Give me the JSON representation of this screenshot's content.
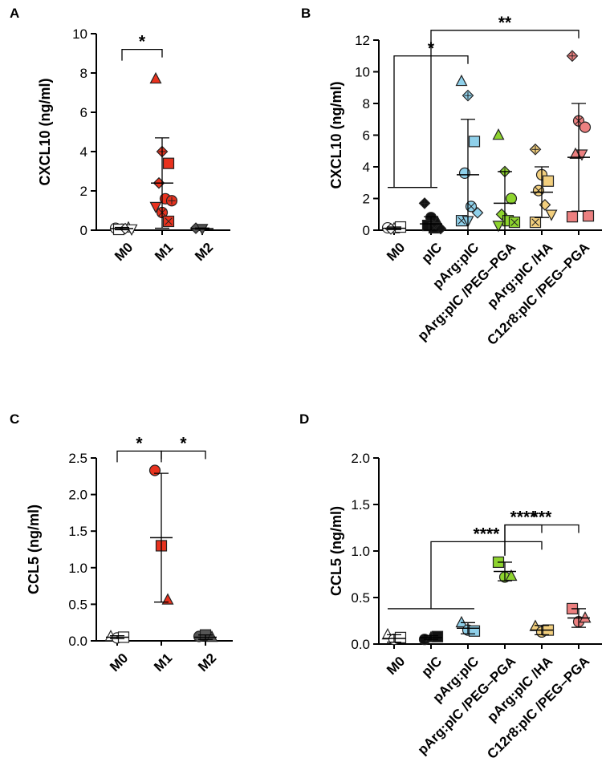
{
  "chart_data": [
    {
      "panel": "A",
      "type": "scatter",
      "ylabel": "CXCL10 (ng/ml)",
      "ylim": [
        0,
        10
      ],
      "yticks": [
        "0",
        "2",
        "4",
        "6",
        "8",
        "10"
      ],
      "categories": [
        "M0",
        "M1",
        "M2"
      ],
      "groups": [
        {
          "name": "M0",
          "color": "#ffffff",
          "mean": 0.08,
          "sd": 0.06,
          "points": [
            {
              "y": 0.1,
              "m": "circle"
            },
            {
              "y": 0.05,
              "m": "circle"
            },
            {
              "y": 0.12,
              "m": "tri"
            },
            {
              "y": 0.04,
              "m": "square"
            },
            {
              "y": 0.08,
              "m": "diamond"
            },
            {
              "y": 0.06,
              "m": "tridown"
            }
          ]
        },
        {
          "name": "M1",
          "color": "#e8321e",
          "mean": 2.4,
          "sd": 2.3,
          "points": [
            {
              "y": 7.7,
              "m": "tri"
            },
            {
              "y": 4.0,
              "m": "diamondplus"
            },
            {
              "y": 3.4,
              "m": "square"
            },
            {
              "y": 2.4,
              "m": "diamond"
            },
            {
              "y": 1.6,
              "m": "circle"
            },
            {
              "y": 1.5,
              "m": "circleplus"
            },
            {
              "y": 1.2,
              "m": "tridown"
            },
            {
              "y": 0.9,
              "m": "circlex"
            },
            {
              "y": 0.45,
              "m": "squarex"
            }
          ]
        },
        {
          "name": "M2",
          "color": "#555555",
          "mean": 0.08,
          "sd": 0.03,
          "points": [
            {
              "y": 0.1,
              "m": "diamond"
            },
            {
              "y": 0.08,
              "m": "tridown"
            }
          ]
        }
      ],
      "significance": [
        {
          "from": 0,
          "to": 1,
          "label": "*",
          "y": 9.2
        }
      ]
    },
    {
      "panel": "B",
      "type": "scatter",
      "ylabel": "CXCL10 (ng/ml)",
      "ylim": [
        0,
        12
      ],
      "yticks": [
        "0",
        "2",
        "4",
        "6",
        "8",
        "10",
        "12"
      ],
      "categories": [
        "M0",
        "pIC",
        "pArg:pIC",
        "pArg:pIC /PEG–PGA",
        "pArg:pIC /HA",
        "C12r8:pIC /PEG–PGA"
      ],
      "groups": [
        {
          "name": "M0",
          "color": "#ffffff",
          "mean": 0.12,
          "sd": 0.08,
          "points": [
            {
              "y": 0.15,
              "m": "circle"
            },
            {
              "y": 0.1,
              "m": "tri"
            },
            {
              "y": 0.2,
              "m": "square"
            },
            {
              "y": 0.08,
              "m": "diamond"
            }
          ]
        },
        {
          "name": "pIC",
          "color": "#111111",
          "mean": 0.4,
          "sd": 0.45,
          "points": [
            {
              "y": 1.7,
              "m": "diamondplus"
            },
            {
              "y": 0.8,
              "m": "circle"
            },
            {
              "y": 0.5,
              "m": "tri"
            },
            {
              "y": 0.3,
              "m": "square"
            },
            {
              "y": 0.15,
              "m": "squarex"
            },
            {
              "y": 0.1,
              "m": "diamond"
            }
          ]
        },
        {
          "name": "pArg:pIC",
          "color": "#8fd0ea",
          "mean": 3.5,
          "sd": 3.5,
          "points": [
            {
              "y": 9.4,
              "m": "tri"
            },
            {
              "y": 8.5,
              "m": "diamondplus"
            },
            {
              "y": 5.6,
              "m": "square"
            },
            {
              "y": 3.6,
              "m": "circle"
            },
            {
              "y": 1.5,
              "m": "circlex"
            },
            {
              "y": 1.1,
              "m": "diamond"
            },
            {
              "y": 0.6,
              "m": "squarex"
            },
            {
              "y": 0.6,
              "m": "tridown"
            }
          ]
        },
        {
          "name": "pArg:pIC /PEG–PGA",
          "color": "#8ed42e",
          "mean": 1.7,
          "sd": 2.0,
          "points": [
            {
              "y": 6.0,
              "m": "tri"
            },
            {
              "y": 3.7,
              "m": "diamondplus"
            },
            {
              "y": 2.0,
              "m": "circle"
            },
            {
              "y": 1.0,
              "m": "diamond"
            },
            {
              "y": 0.6,
              "m": "square"
            },
            {
              "y": 0.5,
              "m": "squarex"
            },
            {
              "y": 0.3,
              "m": "tridown"
            }
          ]
        },
        {
          "name": "pArg:pIC /HA",
          "color": "#f2cf7e",
          "mean": 2.4,
          "sd": 1.6,
          "points": [
            {
              "y": 5.1,
              "m": "diamondplus"
            },
            {
              "y": 3.5,
              "m": "circle"
            },
            {
              "y": 3.1,
              "m": "square"
            },
            {
              "y": 2.5,
              "m": "circlex"
            },
            {
              "y": 1.6,
              "m": "diamond"
            },
            {
              "y": 1.0,
              "m": "tridown"
            },
            {
              "y": 0.5,
              "m": "squarex"
            }
          ]
        },
        {
          "name": "C12r8:pIC /PEG–PGA",
          "color": "#ec8080",
          "mean": 4.6,
          "sd": 3.4,
          "points": [
            {
              "y": 11.0,
              "m": "diamondplus"
            },
            {
              "y": 6.9,
              "m": "circlex"
            },
            {
              "y": 6.5,
              "m": "circle"
            },
            {
              "y": 4.8,
              "m": "tri"
            },
            {
              "y": 4.8,
              "m": "tridown"
            },
            {
              "y": 0.9,
              "m": "square"
            },
            {
              "y": 0.85,
              "m": "square"
            }
          ]
        }
      ],
      "significance": [
        {
          "from": 0,
          "to": 2,
          "label": "*",
          "y": 11.0,
          "drop_to": 2.7
        },
        {
          "from": 1,
          "to": 5,
          "label": "**",
          "y": 12.7,
          "drop_to": 2.7
        }
      ],
      "reference_line": {
        "from": 0,
        "to": 1,
        "y": 2.7
      }
    },
    {
      "panel": "C",
      "type": "scatter",
      "ylabel": "CCL5 (ng/ml)",
      "ylim": [
        0,
        2.5
      ],
      "yticks": [
        "0.0",
        "0.5",
        "1.0",
        "1.5",
        "2.0",
        "2.5"
      ],
      "categories": [
        "M0",
        "M1",
        "M2"
      ],
      "groups": [
        {
          "name": "M0",
          "color": "#ffffff",
          "mean": 0.05,
          "sd": 0.02,
          "points": [
            {
              "y": 0.06,
              "m": "tri"
            },
            {
              "y": 0.04,
              "m": "circle"
            },
            {
              "y": 0.05,
              "m": "square"
            }
          ]
        },
        {
          "name": "M1",
          "color": "#e8321e",
          "mean": 1.41,
          "sd": 0.88,
          "points": [
            {
              "y": 2.33,
              "m": "circle"
            },
            {
              "y": 1.3,
              "m": "square"
            },
            {
              "y": 0.56,
              "m": "tri"
            }
          ]
        },
        {
          "name": "M2",
          "color": "#555555",
          "mean": 0.05,
          "sd": 0.03,
          "points": [
            {
              "y": 0.06,
              "m": "circle"
            },
            {
              "y": 0.08,
              "m": "square"
            },
            {
              "y": 0.05,
              "m": "tri"
            }
          ]
        }
      ],
      "significance": [
        {
          "from": 0,
          "to": 1,
          "label": "*",
          "y": 2.6
        },
        {
          "from": 1,
          "to": 2,
          "label": "*",
          "y": 2.6
        }
      ]
    },
    {
      "panel": "D",
      "type": "scatter",
      "ylabel": "CCL5 (ng/ml)",
      "ylim": [
        0,
        2.0
      ],
      "yticks": [
        "0.0",
        "0.5",
        "1.0",
        "1.5",
        "2.0"
      ],
      "categories": [
        "M0",
        "pIC",
        "pArg:pIC",
        "pArg:pIC /PEG–PGA",
        "pArg:pIC /HA",
        "C12r8:pIC /PEG–PGA"
      ],
      "groups": [
        {
          "name": "M0",
          "color": "#ffffff",
          "mean": 0.06,
          "sd": 0.04,
          "points": [
            {
              "y": 0.1,
              "m": "tri"
            },
            {
              "y": 0.05,
              "m": "circle"
            },
            {
              "y": 0.07,
              "m": "square"
            }
          ]
        },
        {
          "name": "pIC",
          "color": "#111111",
          "mean": 0.07,
          "sd": 0.02,
          "points": [
            {
              "y": 0.05,
              "m": "circle"
            },
            {
              "y": 0.07,
              "m": "tri"
            },
            {
              "y": 0.08,
              "m": "square"
            }
          ]
        },
        {
          "name": "pArg:pIC",
          "color": "#8fd0ea",
          "mean": 0.17,
          "sd": 0.06,
          "points": [
            {
              "y": 0.23,
              "m": "tri"
            },
            {
              "y": 0.15,
              "m": "circle"
            },
            {
              "y": 0.14,
              "m": "square"
            }
          ]
        },
        {
          "name": "pArg:pIC /PEG–PGA",
          "color": "#8ed42e",
          "mean": 0.78,
          "sd": 0.1,
          "points": [
            {
              "y": 0.88,
              "m": "square"
            },
            {
              "y": 0.72,
              "m": "circle"
            },
            {
              "y": 0.73,
              "m": "tri"
            }
          ]
        },
        {
          "name": "pArg:pIC /HA",
          "color": "#f2cf7e",
          "mean": 0.15,
          "sd": 0.05,
          "points": [
            {
              "y": 0.19,
              "m": "tri"
            },
            {
              "y": 0.13,
              "m": "circle"
            },
            {
              "y": 0.15,
              "m": "square"
            }
          ]
        },
        {
          "name": "C12r8:pIC /PEG–PGA",
          "color": "#ec8080",
          "mean": 0.28,
          "sd": 0.1,
          "points": [
            {
              "y": 0.38,
              "m": "square"
            },
            {
              "y": 0.24,
              "m": "circle"
            },
            {
              "y": 0.28,
              "m": "tri"
            }
          ]
        }
      ],
      "significance": [
        {
          "from": 1,
          "to": 4,
          "label": "****",
          "y": 1.1,
          "drop_to": 0.38
        },
        {
          "from": 3,
          "to": 4,
          "label": "****",
          "y": 1.28,
          "drop_to": 0.95
        },
        {
          "from": 3,
          "to": 5,
          "label": "***",
          "y": 1.28,
          "drop_to": 0.95
        }
      ],
      "reference_line": {
        "from": 0,
        "to": 2,
        "y": 0.38
      }
    }
  ]
}
